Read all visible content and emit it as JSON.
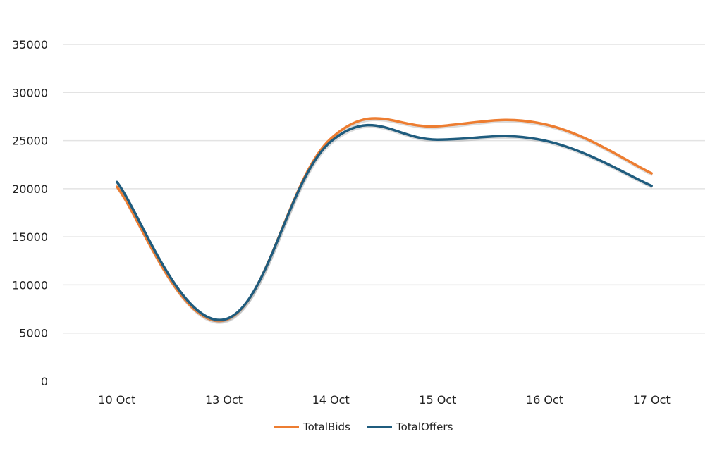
{
  "chart_data": {
    "type": "line",
    "smooth": true,
    "categories": [
      "10 Oct",
      "13 Oct",
      "14 Oct",
      "15 Oct",
      "16 Oct",
      "17 Oct"
    ],
    "series": [
      {
        "name": "TotalBids",
        "color": "#ED7D31",
        "values": [
          20200,
          6300,
          25200,
          26500,
          26700,
          21600
        ]
      },
      {
        "name": "TotalOffers",
        "color": "#1F5C7E",
        "values": [
          20700,
          6400,
          24900,
          25100,
          25000,
          20300
        ]
      }
    ],
    "ylim": [
      0,
      35000
    ],
    "yticks": [
      0,
      5000,
      10000,
      15000,
      20000,
      25000,
      30000,
      35000
    ],
    "grid": true,
    "legend_position": "bottom",
    "title": "",
    "xlabel": "",
    "ylabel": ""
  }
}
